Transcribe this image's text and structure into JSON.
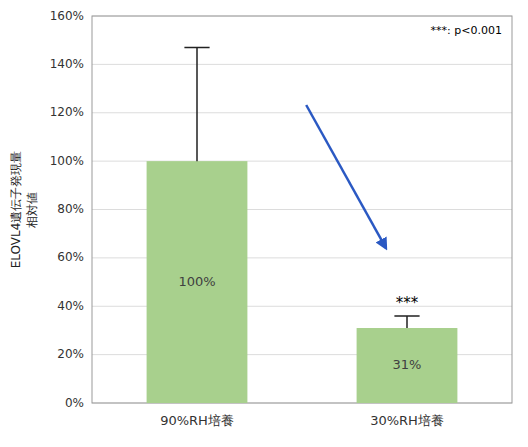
{
  "chart_data": {
    "type": "bar",
    "categories": [
      "90%RH培養",
      "30%RH培養"
    ],
    "values": [
      100,
      31
    ],
    "value_labels": [
      "100%",
      "31%"
    ],
    "data_labels": true,
    "errors_upper": [
      47,
      5
    ],
    "color": "#a8d08d",
    "ylabel": "ELOVL4遺伝子発現量\n相対値",
    "ylim": [
      0,
      160
    ],
    "yticks": [
      {
        "value": 0,
        "label": "0%"
      },
      {
        "value": 20,
        "label": "20%"
      },
      {
        "value": 40,
        "label": "40%"
      },
      {
        "value": 60,
        "label": "60%"
      },
      {
        "value": 80,
        "label": "80%"
      },
      {
        "value": 100,
        "label": "100%"
      },
      {
        "value": 120,
        "label": "120%"
      },
      {
        "value": 140,
        "label": "140%"
      },
      {
        "value": 160,
        "label": "160%"
      }
    ],
    "significance_label": "***",
    "significance_category": "30%RH培養",
    "annotation": "***: p<0.001",
    "grid": true
  }
}
